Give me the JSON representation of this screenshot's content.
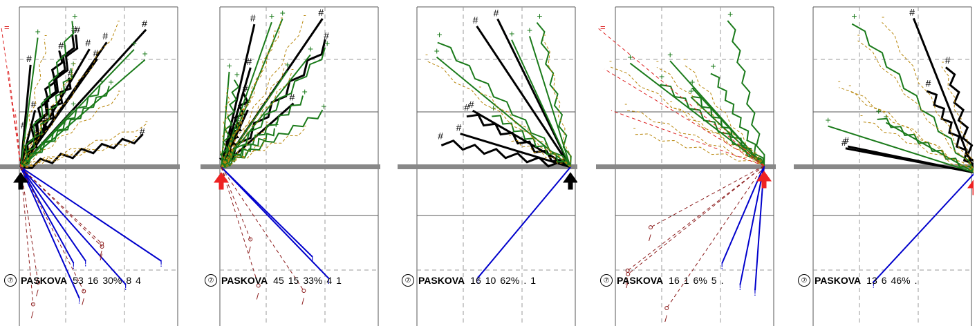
{
  "panels": [
    {
      "index": "⑦",
      "name": "PASKOVA",
      "stats": [
        "53",
        "16",
        "30%",
        "8",
        "4"
      ]
    },
    {
      "index": "⑦",
      "name": "PASKOVA",
      "stats": [
        "45",
        "15",
        "33%",
        "4",
        "1"
      ]
    },
    {
      "index": "⑦",
      "name": "PASKOVA",
      "stats": [
        "16",
        "10",
        "62%",
        ".",
        "1"
      ]
    },
    {
      "index": "⑦",
      "name": "PASKOVA",
      "stats": [
        "16",
        "1",
        "6%",
        "5",
        "."
      ]
    },
    {
      "index": "⑦",
      "name": "PASKOVA",
      "stats": [
        "13",
        "6",
        "46%",
        "."
      ]
    }
  ],
  "colors": {
    "goal": "#000000",
    "shot_on": "#1a7a1a",
    "shot_off": "#b8860b",
    "pass": "#0000cc",
    "lost": "#8b1a1a",
    "shot_red": "#dd2222",
    "axis": "#888888"
  }
}
